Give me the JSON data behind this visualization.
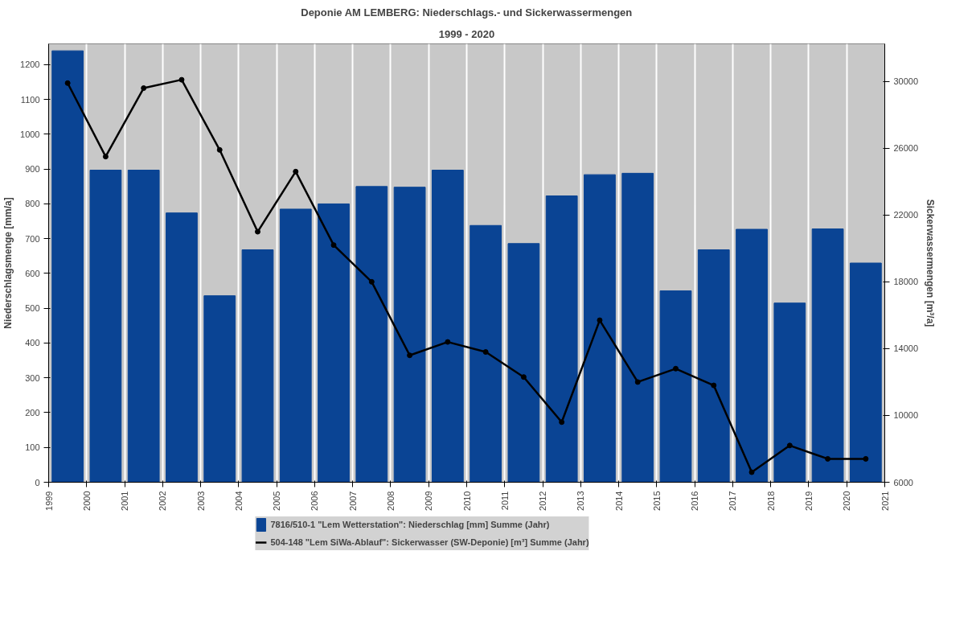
{
  "chart_data": {
    "type": "bar",
    "title": "Deponie AM LEMBERG: Niederschlags.- und Sickerwassermengen",
    "subtitle": "1999 - 2020",
    "ylabel": "Niederschlagsmenge [mm/a]",
    "y2label": "Sickerwassermengen [m³/a]",
    "x": [
      1999.5,
      2000.5,
      2001.5,
      2002.5,
      2003.5,
      2004.5,
      2005.5,
      2006.5,
      2007.5,
      2008.5,
      2009.5,
      2010.5,
      2011.5,
      2012.5,
      2013.5,
      2014.5,
      2015.5,
      2016.5,
      2017.5,
      2018.5,
      2019.5,
      2020.5
    ],
    "xlim": [
      1999,
      2021
    ],
    "xticks": [
      1999,
      2000,
      2001,
      2002,
      2003,
      2004,
      2005,
      2006,
      2007,
      2008,
      2009,
      2010,
      2011,
      2012,
      2013,
      2014,
      2015,
      2016,
      2017,
      2018,
      2019,
      2020,
      2021
    ],
    "ylim": [
      0,
      1260
    ],
    "yticks": [
      0,
      100,
      200,
      300,
      400,
      500,
      600,
      700,
      800,
      900,
      1000,
      1100,
      1200
    ],
    "y2lim": [
      6000,
      32250
    ],
    "y2ticks": [
      6000,
      10000,
      14000,
      18000,
      22000,
      26000,
      30000
    ],
    "series": [
      {
        "name": "7816/510-1 \"Lem Wetterstation\": Niederschlag [mm] Summe (Jahr)",
        "color": "#0a4494",
        "values": [
          1240,
          897,
          897,
          774,
          536,
          668,
          785,
          800,
          850,
          848,
          897,
          738,
          686,
          823,
          884,
          888,
          550,
          668,
          727,
          515,
          728,
          630
        ]
      },
      {
        "name": "504-148 \"Lem SiWa-Ablauf\": Sickerwasser (SW-Deponie) [m³] Summe (Jahr)",
        "type": "line",
        "axis": "y2",
        "color": "#000000",
        "marker": "circle",
        "values": [
          29900,
          25500,
          29600,
          30100,
          25900,
          21000,
          24600,
          20200,
          18000,
          13600,
          14400,
          13800,
          12300,
          9600,
          15700,
          12000,
          12800,
          11800,
          6600,
          8200,
          7400,
          7400
        ]
      }
    ],
    "grid": "x",
    "legend": "bottom"
  }
}
